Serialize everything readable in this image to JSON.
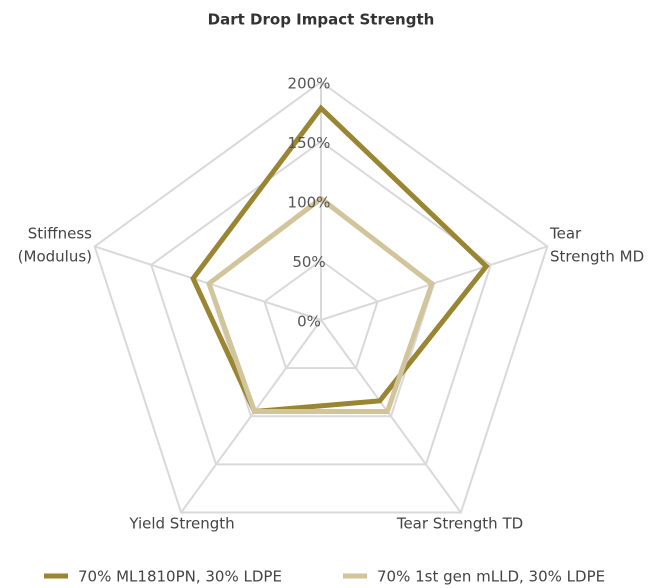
{
  "chart_data": {
    "type": "radar",
    "categories": [
      [
        "Dart Drop Impact Strength"
      ],
      [
        "Tear",
        "Strength MD"
      ],
      [
        "Tear Strength TD"
      ],
      [
        "Yield Strength"
      ],
      [
        "Stiffness",
        "(Modulus)"
      ]
    ],
    "series": [
      {
        "name": "70% ML1810PN, 30% LDPE",
        "color": "#9a8532",
        "values": [
          178,
          146,
          84,
          95,
          113
        ]
      },
      {
        "name": "70% 1st gen mLLD, 30% LDPE",
        "color": "#d2c59b",
        "values": [
          102,
          98,
          95,
          95,
          99
        ]
      }
    ],
    "ylim": [
      0,
      200
    ],
    "yticks": [
      {
        "value": 0,
        "label": "0%"
      },
      {
        "value": 50,
        "label": "50%"
      },
      {
        "value": 100,
        "label": "100%"
      },
      {
        "value": 150,
        "label": "150%"
      },
      {
        "value": 200,
        "label": "200%"
      }
    ],
    "grid": true,
    "legend": "bottom"
  }
}
